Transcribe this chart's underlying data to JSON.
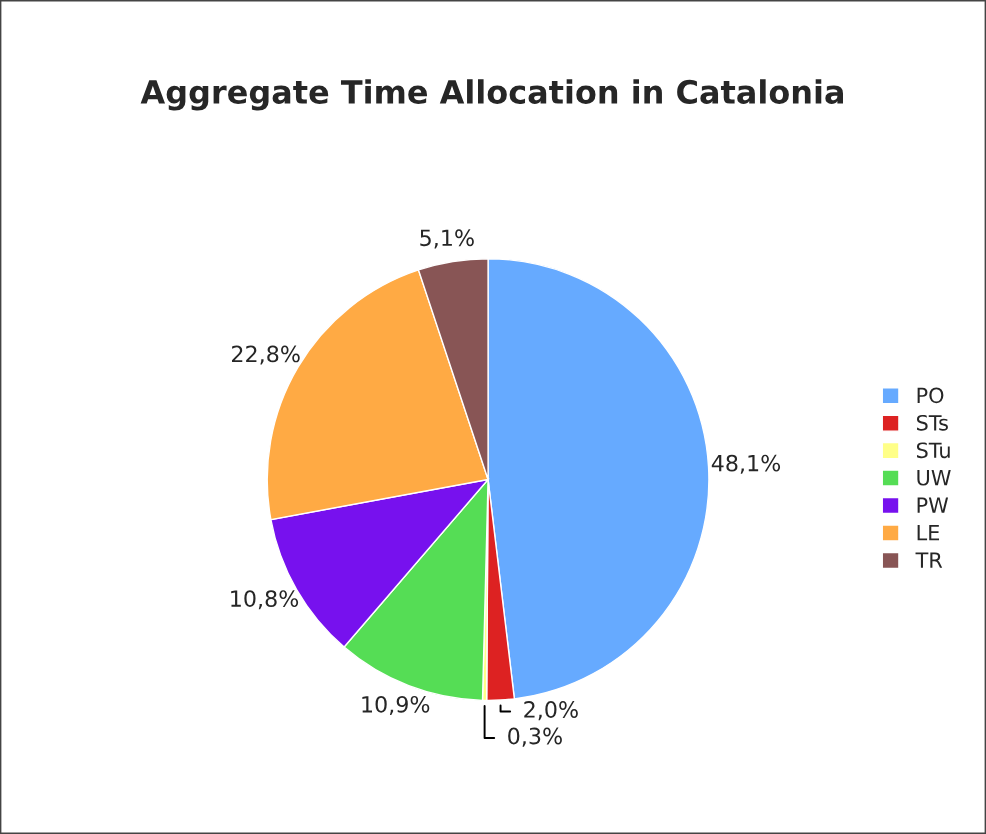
{
  "chart_data": {
    "type": "pie",
    "title": "Aggregate Time Allocation in Catalonia",
    "categories": [
      "PO",
      "STs",
      "STu",
      "UW",
      "PW",
      "LE",
      "TR"
    ],
    "values": [
      48.1,
      2.0,
      0.3,
      10.9,
      10.8,
      22.8,
      5.1
    ],
    "value_labels": [
      "48,1%",
      "2,0%",
      "0,3%",
      "10,9%",
      "10,8%",
      "22,8%",
      "5,1%"
    ],
    "colors": [
      "#66aaff",
      "#dd2222",
      "#ffff88",
      "#55dd55",
      "#7711ee",
      "#ffaa44",
      "#885555"
    ],
    "legend": "right"
  }
}
